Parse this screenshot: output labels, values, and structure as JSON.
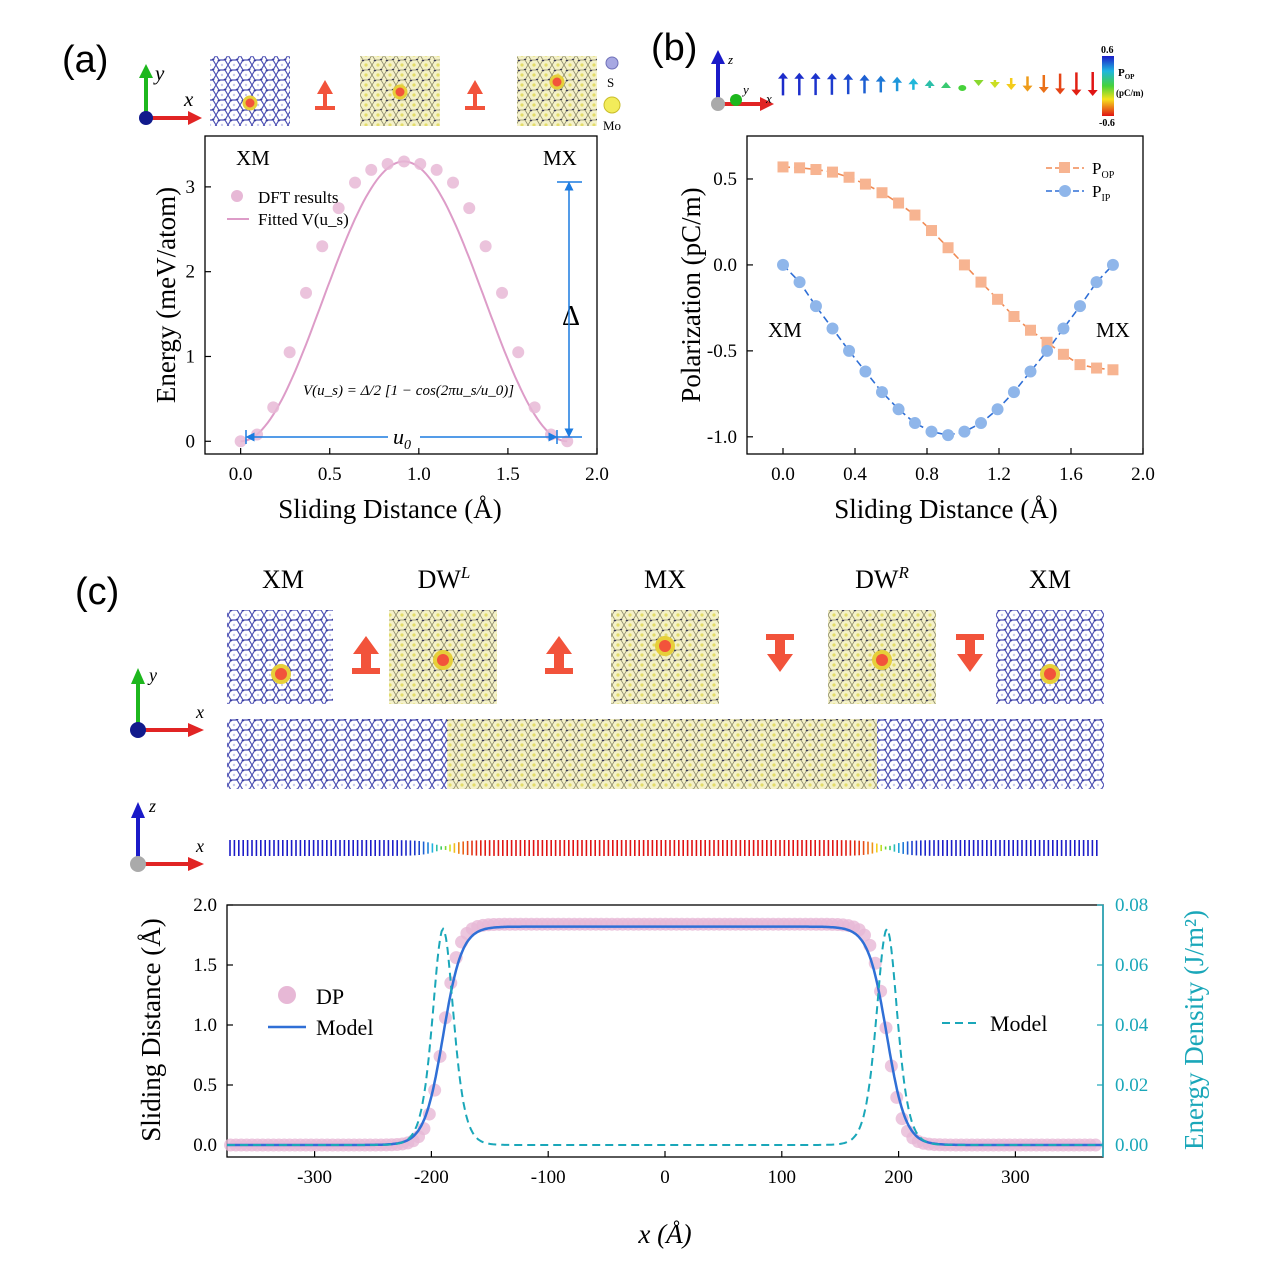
{
  "colors": {
    "pink": "#e7b8d6",
    "pink_line": "#dd9cc8",
    "blue_line": "#2f6fd6",
    "blue_point": "#8fb6ea",
    "orange_line": "#f08a53",
    "orange_point": "#f7b491",
    "teal": "#1aa7b9",
    "dim_blue": "#1c7be0",
    "mo_yellow": "#f2f07a",
    "s_purple": "#7d7fc4",
    "arrow_red": "#f2533b"
  },
  "panels": {
    "a": {
      "label": "(a)",
      "legend_S": "S",
      "legend_Mo": "Mo",
      "axis_x": "x",
      "axis_y": "y"
    },
    "b": {
      "label": "(b)",
      "colorbar_title": "P",
      "colorbar_sub": "OP",
      "colorbar_unit": "(pC/m)",
      "colorbar_max": "0.6",
      "colorbar_min": "-0.6",
      "axis_x": "x",
      "axis_y": "y",
      "axis_z": "z"
    },
    "c": {
      "label": "(c)",
      "stackings": [
        "XM",
        "DW",
        "MX",
        "DW",
        "XM"
      ],
      "dw_left_sup": "L",
      "dw_right_sup": "R",
      "axis_x": "x",
      "axis_y": "y",
      "axis_z": "z"
    }
  },
  "chart_data": [
    {
      "type": "scatter",
      "title": "",
      "xlabel": "Sliding Distance (Å)",
      "ylabel": "Energy (meV/atom)",
      "xlim": [
        -0.2,
        2.0
      ],
      "ylim": [
        -0.15,
        3.6
      ],
      "xticks": [
        "0.0",
        "0.5",
        "1.0",
        "1.5",
        "2.0"
      ],
      "yticks": [
        "0",
        "1",
        "2",
        "3"
      ],
      "annotations": {
        "left": "XM",
        "right": "MX",
        "delta": "Δ",
        "u0": "u",
        "u0_sub": "0",
        "formula": "V(u_s) = Δ/2 [1 − cos(2πu_s/u_0)]"
      },
      "series": [
        {
          "name": "DFT results",
          "style": "points",
          "x": [
            0.0,
            0.092,
            0.183,
            0.275,
            0.367,
            0.458,
            0.55,
            0.642,
            0.733,
            0.825,
            0.917,
            1.008,
            1.1,
            1.192,
            1.283,
            1.375,
            1.467,
            1.558,
            1.65,
            1.742,
            1.833
          ],
          "y": [
            0.0,
            0.08,
            0.4,
            1.05,
            1.75,
            2.3,
            2.75,
            3.05,
            3.2,
            3.27,
            3.3,
            3.27,
            3.2,
            3.05,
            2.75,
            2.3,
            1.75,
            1.05,
            0.4,
            0.08,
            0.0
          ]
        },
        {
          "name": "Fitted V(u_s)",
          "style": "line",
          "delta": 3.3,
          "u0": 1.833
        }
      ]
    },
    {
      "type": "line",
      "title": "",
      "xlabel": "Sliding Distance (Å)",
      "ylabel": "Polarization (pC/m)",
      "xlim": [
        -0.2,
        2.0
      ],
      "ylim": [
        -1.1,
        0.75
      ],
      "xticks": [
        "0.0",
        "0.4",
        "0.8",
        "1.2",
        "1.6",
        "2.0"
      ],
      "yticks": [
        "0.5",
        "0.0",
        "-0.5",
        "-1.0"
      ],
      "annotations": {
        "left": "XM",
        "right": "MX"
      },
      "series": [
        {
          "name": "P_OP",
          "label_main": "P",
          "label_sub": "OP",
          "marker": "square",
          "x": [
            0.0,
            0.092,
            0.183,
            0.275,
            0.367,
            0.458,
            0.55,
            0.642,
            0.733,
            0.825,
            0.917,
            1.008,
            1.1,
            1.192,
            1.283,
            1.375,
            1.467,
            1.558,
            1.65,
            1.742,
            1.833
          ],
          "y": [
            0.57,
            0.565,
            0.555,
            0.54,
            0.51,
            0.47,
            0.42,
            0.36,
            0.29,
            0.2,
            0.1,
            0.0,
            -0.1,
            -0.2,
            -0.3,
            -0.38,
            -0.45,
            -0.52,
            -0.58,
            -0.6,
            -0.61
          ]
        },
        {
          "name": "P_IP",
          "label_main": "P",
          "label_sub": "IP",
          "marker": "circle",
          "x": [
            0.0,
            0.092,
            0.183,
            0.275,
            0.367,
            0.458,
            0.55,
            0.642,
            0.733,
            0.825,
            0.917,
            1.008,
            1.1,
            1.192,
            1.283,
            1.375,
            1.467,
            1.558,
            1.65,
            1.742,
            1.833
          ],
          "y": [
            0.0,
            -0.1,
            -0.24,
            -0.37,
            -0.5,
            -0.62,
            -0.74,
            -0.84,
            -0.92,
            -0.97,
            -0.99,
            -0.97,
            -0.92,
            -0.84,
            -0.74,
            -0.62,
            -0.5,
            -0.37,
            -0.24,
            -0.1,
            0.0
          ]
        }
      ]
    },
    {
      "type": "line",
      "title": "",
      "xlabel": "x (Å)",
      "ylabel": "Sliding Distance (Å)",
      "ylabel_right": "Energy Density (J/m²)",
      "xlim": [
        -375,
        375
      ],
      "ylim": [
        -0.1,
        2.0
      ],
      "ylim_right": [
        -0.004,
        0.08
      ],
      "xticks": [
        "-300",
        "-200",
        "-100",
        "0",
        "100",
        "200",
        "300"
      ],
      "yticks": [
        "0.0",
        "0.5",
        "1.0",
        "1.5",
        "2.0"
      ],
      "yticks_right": [
        "0.00",
        "0.02",
        "0.04",
        "0.06",
        "0.08"
      ],
      "series": [
        {
          "name": "DP",
          "style": "points",
          "plateau": 1.84,
          "centers": [
            -190,
            190
          ],
          "width": 13
        },
        {
          "name": "Model",
          "style": "line",
          "plateau": 1.82,
          "centers": [
            -190,
            190
          ],
          "width": 16
        },
        {
          "name": "Model",
          "style": "dashed",
          "axis": "right",
          "peak": 0.072,
          "centers": [
            -190,
            190
          ],
          "width": 12
        }
      ]
    }
  ]
}
